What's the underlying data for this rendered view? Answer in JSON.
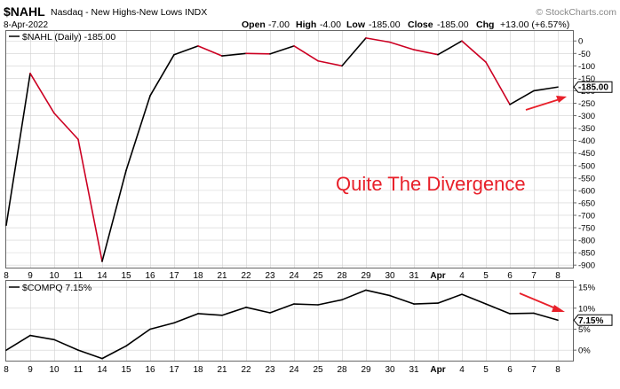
{
  "header": {
    "symbol": "$NAHL",
    "description": "Nasdaq - New Highs-New Lows INDX",
    "brand": "© StockCharts.com",
    "date": "8-Apr-2022",
    "open_label": "Open",
    "open_value": "-7.00",
    "high_label": "High",
    "high_value": "-4.00",
    "low_label": "Low",
    "low_value": "-185.00",
    "close_label": "Close",
    "close_value": "-185.00",
    "chg_label": "Chg",
    "chg_value": "+13.00 (+6.57%)"
  },
  "annotation": "Quite The Divergence",
  "colors": {
    "up": "#000000",
    "down": "#cc0022",
    "grid": "#d0d0d0",
    "arrow": "#e8202a",
    "annotation": "#e8202a"
  },
  "chart_data": [
    {
      "type": "line",
      "legend": "$NAHL (Daily) -185.00",
      "last_value_label": "-185.00",
      "categories": [
        "8",
        "9",
        "10",
        "11",
        "14",
        "15",
        "16",
        "17",
        "18",
        "21",
        "22",
        "23",
        "24",
        "25",
        "28",
        "29",
        "30",
        "31",
        "Apr",
        "4",
        "5",
        "6",
        "7",
        "8"
      ],
      "values": [
        -740,
        -130,
        -290,
        -395,
        -885,
        -520,
        -220,
        -55,
        -20,
        -60,
        -50,
        -52,
        -20,
        -80,
        -100,
        12,
        -5,
        -35,
        -55,
        0,
        -85,
        -255,
        -200,
        -185
      ],
      "y_ticks": [
        0,
        -50,
        -100,
        -150,
        -200,
        -250,
        -300,
        -350,
        -400,
        -450,
        -500,
        -550,
        -600,
        -650,
        -700,
        -750,
        -800,
        -850,
        -900
      ],
      "y_tick_labels": [
        "0",
        "-50",
        "-100",
        "-150",
        "-200",
        "-250",
        "-300",
        "-350",
        "-400",
        "-450",
        "-500",
        "-550",
        "-600",
        "-650",
        "-700",
        "-750",
        "-800",
        "-850",
        "-900"
      ],
      "ylim": [
        -910,
        40
      ],
      "grid": true
    },
    {
      "type": "line",
      "legend": "$COMPQ 7.15%",
      "last_value_label": "7.15%",
      "categories": [
        "8",
        "9",
        "10",
        "11",
        "14",
        "15",
        "16",
        "17",
        "18",
        "21",
        "22",
        "23",
        "24",
        "25",
        "28",
        "29",
        "30",
        "31",
        "Apr",
        "4",
        "5",
        "6",
        "7",
        "8"
      ],
      "values": [
        0,
        3.5,
        2.5,
        0,
        -2,
        1,
        5,
        6.5,
        8.7,
        8.3,
        10.2,
        8.9,
        11,
        10.8,
        12,
        14.3,
        13,
        11,
        11.2,
        13.3,
        11,
        8.7,
        8.8,
        7.15
      ],
      "y_ticks": [
        15,
        10,
        5,
        0
      ],
      "y_tick_labels": [
        "15%",
        "10%",
        "5%",
        "0%"
      ],
      "ylim": [
        -2.5,
        16.5
      ],
      "grid": true
    }
  ]
}
